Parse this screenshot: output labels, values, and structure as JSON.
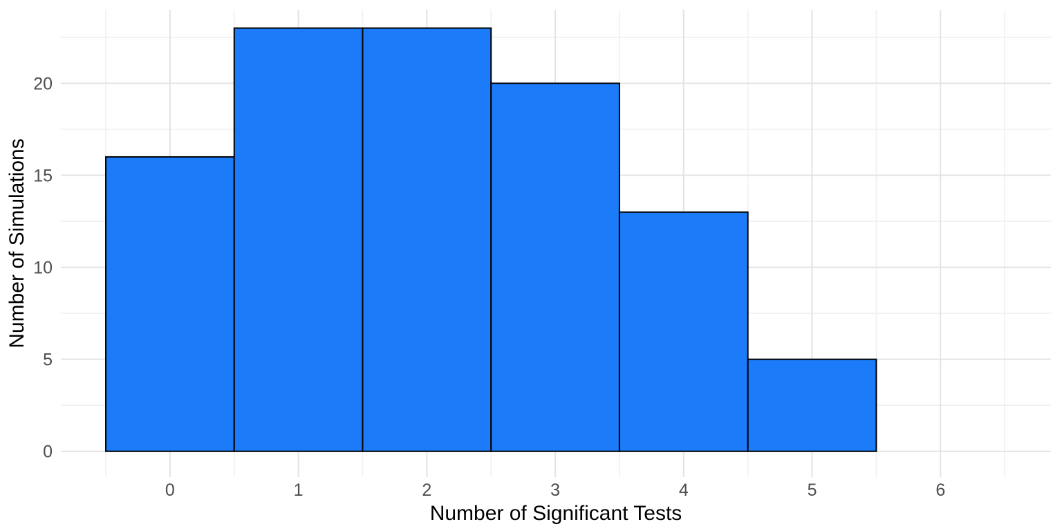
{
  "chart_data": {
    "type": "bar",
    "subtype": "histogram",
    "title": "",
    "xlabel": "Number of Significant Tests",
    "ylabel": "Number of Simulations",
    "categories": [
      0,
      1,
      2,
      3,
      4,
      5
    ],
    "values": [
      16,
      23,
      23,
      20,
      13,
      5
    ],
    "bar_width": 1,
    "xlim": [
      -0.85,
      6.86
    ],
    "ylim": [
      -1.4,
      24.0
    ],
    "x_major_ticks": [
      0,
      1,
      2,
      3,
      4,
      5,
      6
    ],
    "x_tick_labels": [
      "0",
      "1",
      "2",
      "3",
      "4",
      "5",
      "6"
    ],
    "x_minor_ticks": [
      -0.5,
      0.5,
      1.5,
      2.5,
      3.5,
      4.5,
      5.5,
      6.5
    ],
    "y_major_ticks": [
      0,
      5,
      10,
      15,
      20
    ],
    "y_tick_labels": [
      "0",
      "5",
      "10",
      "15",
      "20"
    ],
    "y_minor_ticks": [
      2.5,
      7.5,
      12.5,
      17.5,
      22.5
    ],
    "grid": true,
    "legend": false,
    "colors": {
      "bar_fill": "#1C7BF8",
      "bar_stroke": "#000000",
      "grid_major": "#E3E3E3",
      "grid_minor": "#F0F0F0",
      "tick_label": "#4D4D4D",
      "axis_title": "#000000",
      "background": "#FFFFFF"
    }
  }
}
